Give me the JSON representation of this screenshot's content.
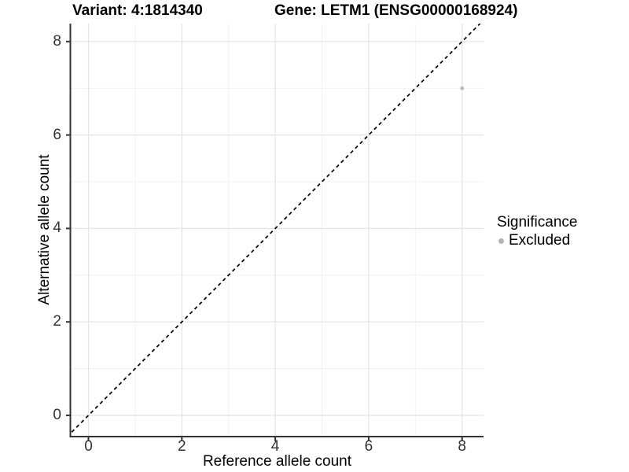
{
  "chart_data": {
    "type": "scatter",
    "titles": {
      "variant": "Variant: 4:1814340",
      "gene": "Gene: LETM1 (ENSG00000168924)"
    },
    "xlabel": "Reference allele count",
    "ylabel": "Alternative allele count",
    "x_tick_labels": [
      "0",
      "2",
      "4",
      "6",
      "8"
    ],
    "y_tick_labels": [
      "0",
      "2",
      "4",
      "6",
      "8"
    ],
    "x_tick_values": [
      0,
      2,
      4,
      6,
      8
    ],
    "y_tick_values": [
      0,
      2,
      4,
      6,
      8
    ],
    "minor_tick_values": [
      1,
      3,
      5,
      7
    ],
    "xlim": [
      -0.46,
      8.45
    ],
    "ylim": [
      -0.46,
      8.42
    ],
    "grid": {
      "visible": true,
      "major_color": "#e3e3e3",
      "minor_color": "#f1f1f1"
    },
    "reference_line": {
      "type": "identity",
      "slope": 1,
      "intercept": 0,
      "style": "dashed",
      "color": "#000000"
    },
    "series": [
      {
        "name": "Excluded",
        "color": "#b9b9b9",
        "points": [
          {
            "x": 8,
            "y": 7
          }
        ]
      }
    ],
    "legend": {
      "title": "Significance",
      "position": "right",
      "entries": [
        {
          "label": "Excluded",
          "color": "#b3b3b3"
        }
      ]
    }
  }
}
